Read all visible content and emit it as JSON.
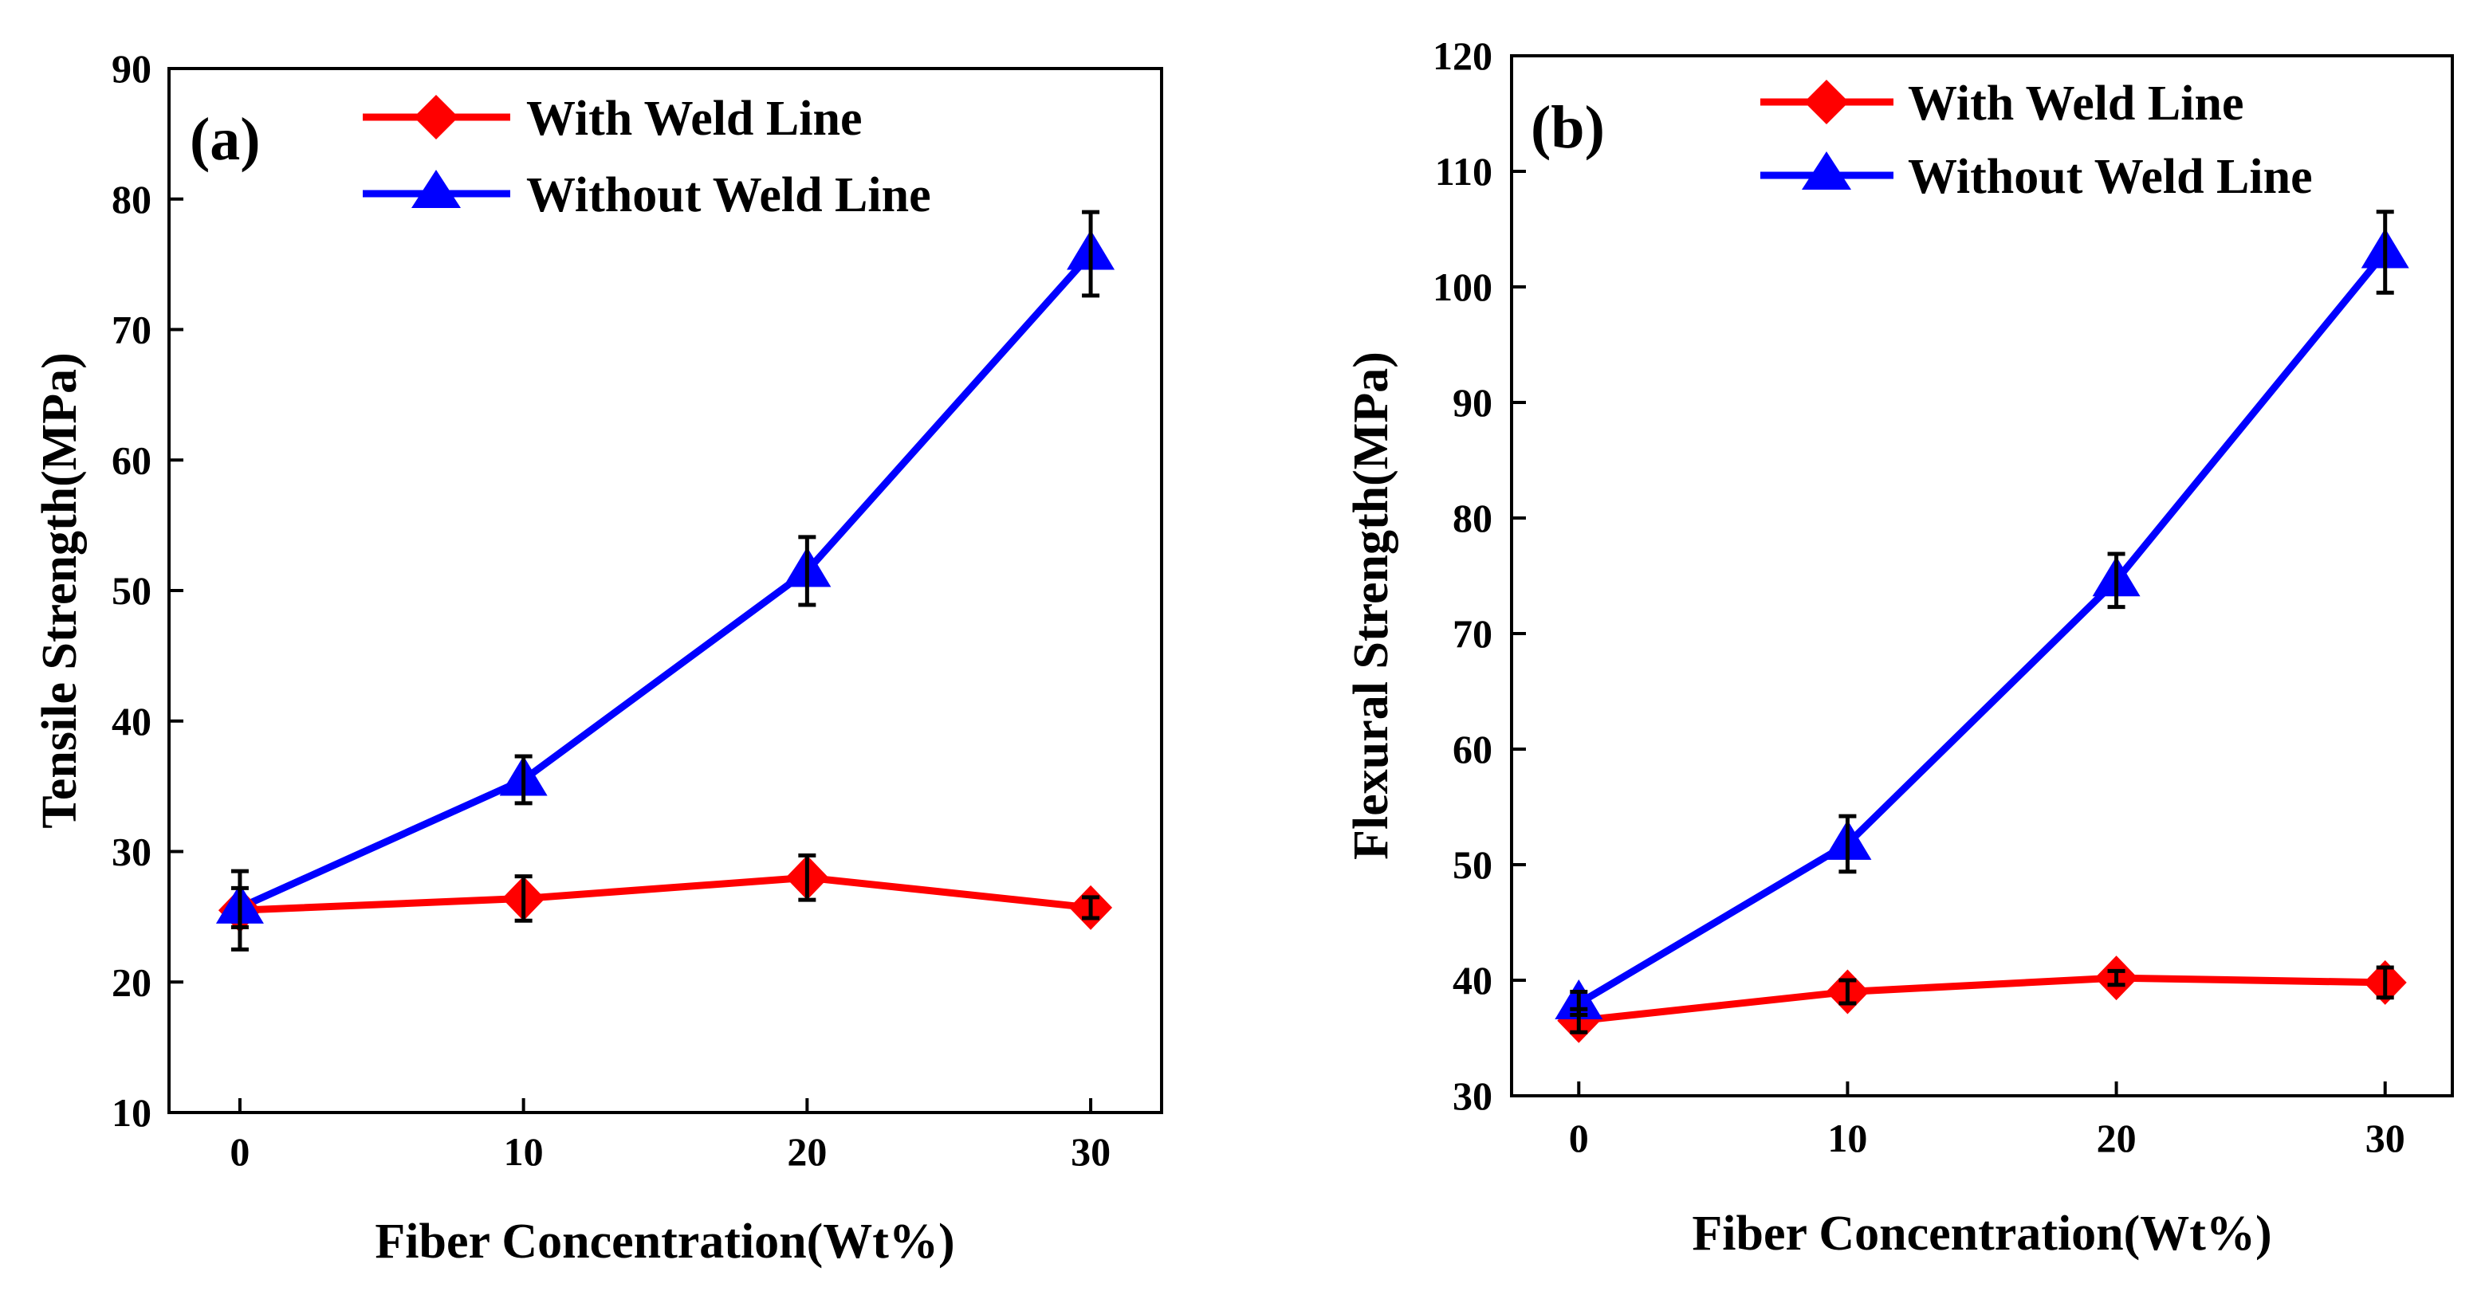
{
  "figure": {
    "background": "#ffffff"
  },
  "chart_data": [
    {
      "type": "line",
      "panel_label": "(a)",
      "xlabel": "Fiber Concentration(Wt%)",
      "ylabel": "Tensile Strength(MPa)",
      "x": [
        0,
        10,
        20,
        30
      ],
      "xticks": [
        "0",
        "10",
        "20",
        "30"
      ],
      "xlim": [
        -2.5,
        32.5
      ],
      "ylim": [
        10,
        90
      ],
      "yticks": [
        "10",
        "20",
        "30",
        "40",
        "50",
        "60",
        "70",
        "80",
        "90"
      ],
      "legend_position": "top-right",
      "series": [
        {
          "name": "With Weld Line",
          "color": "#ff0000",
          "marker": "diamond",
          "values": [
            25.5,
            26.4,
            28.0,
            25.7
          ],
          "errors": [
            3.0,
            1.7,
            1.7,
            0.8
          ]
        },
        {
          "name": "Without Weld Line",
          "color": "#0000ff",
          "marker": "triangle",
          "values": [
            25.7,
            35.5,
            51.5,
            75.8
          ],
          "errors": [
            1.5,
            1.8,
            2.6,
            3.2
          ]
        }
      ]
    },
    {
      "type": "line",
      "panel_label": "(b)",
      "xlabel": "Fiber Concentration(Wt%)",
      "ylabel": "Flexural Strength(MPa)",
      "x": [
        0,
        10,
        20,
        30
      ],
      "xticks": [
        "0",
        "10",
        "20",
        "30"
      ],
      "xlim": [
        -2.5,
        32.5
      ],
      "ylim": [
        30,
        120
      ],
      "yticks": [
        "30",
        "40",
        "50",
        "60",
        "70",
        "80",
        "90",
        "100",
        "110",
        "120"
      ],
      "legend_position": "top-right",
      "series": [
        {
          "name": "With Weld Line",
          "color": "#ff0000",
          "marker": "diamond",
          "values": [
            36.5,
            39.0,
            40.2,
            39.8
          ],
          "errors": [
            1.0,
            1.0,
            0.6,
            1.3
          ]
        },
        {
          "name": "Without Weld Line",
          "color": "#0000ff",
          "marker": "triangle",
          "values": [
            38.0,
            51.8,
            74.6,
            103.0
          ],
          "errors": [
            1.0,
            2.4,
            2.3,
            3.5
          ]
        }
      ]
    }
  ]
}
